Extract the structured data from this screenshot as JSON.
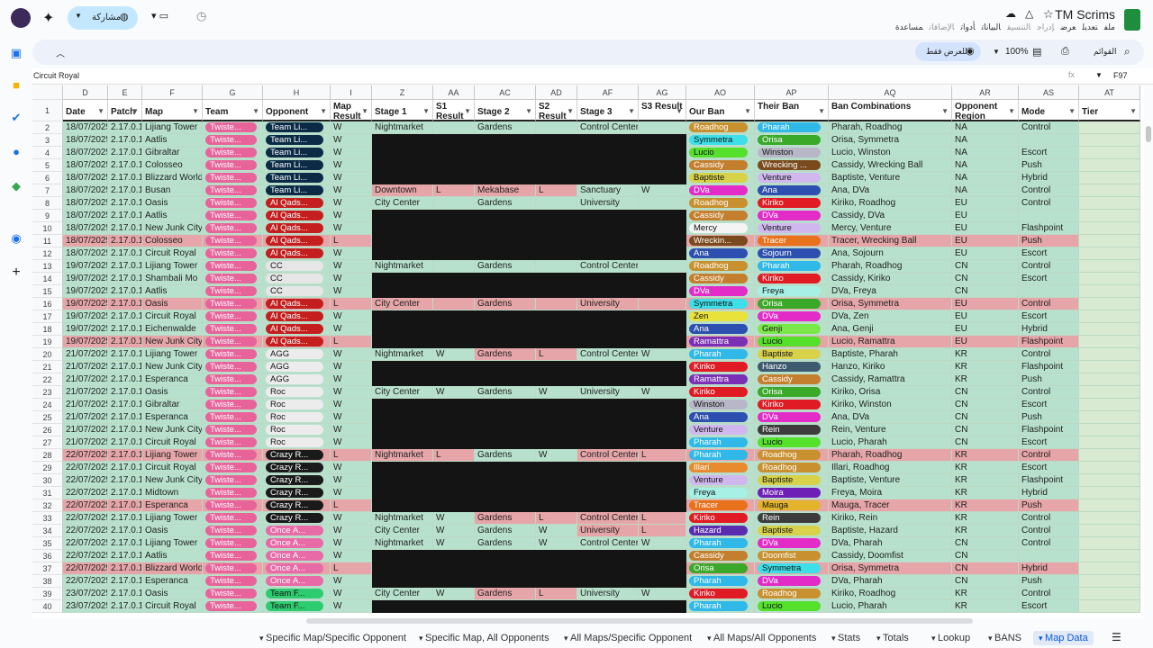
{
  "doc": {
    "title": "TM Scrims",
    "share_label": "مشاركة",
    "menus": [
      "ملف",
      "تعديل",
      "عرض",
      "إدراج",
      "التنسيق",
      "البيانات",
      "أدوات",
      "الإضافات",
      "مساعدة"
    ],
    "view_only": "للعرض فقط",
    "zoom": "100%",
    "menus_label": "القوائم",
    "cell_ref": "F97",
    "formula_value": "Circuit Royal"
  },
  "columns": [
    {
      "letter": "D",
      "w": 50
    },
    {
      "letter": "E",
      "w": 38
    },
    {
      "letter": "F",
      "w": 67
    },
    {
      "letter": "G",
      "w": 67
    },
    {
      "letter": "H",
      "w": 75
    },
    {
      "letter": "I",
      "w": 46
    },
    {
      "letter": "Z",
      "w": 68
    },
    {
      "letter": "AA",
      "w": 46
    },
    {
      "letter": "AC",
      "w": 68
    },
    {
      "letter": "AD",
      "w": 46
    },
    {
      "letter": "AF",
      "w": 68
    },
    {
      "letter": "AG",
      "w": 53
    },
    {
      "letter": "AO",
      "w": 76
    },
    {
      "letter": "AP",
      "w": 82
    },
    {
      "letter": "AQ",
      "w": 137
    },
    {
      "letter": "AR",
      "w": 74
    },
    {
      "letter": "AS",
      "w": 67
    },
    {
      "letter": "AT",
      "w": 68
    }
  ],
  "headers": [
    "Date",
    "Patch",
    "Map",
    "Team",
    "Opponent",
    "Map Result",
    "Stage 1",
    "S1 Result",
    "Stage 2",
    "S2 Result",
    "Stage 3",
    "S3 Result",
    "Our Ban",
    "Their Ban",
    "Ban Combinations",
    "Opponent Region",
    "Mode",
    "Tier"
  ],
  "rows": [
    [
      "18/07/2025",
      "2.17.0.1",
      "Lijiang Tower",
      "Twiste...",
      "Team Li...",
      "W",
      "Nightmarket",
      "",
      "Gardens",
      "",
      "Control Center",
      "",
      "Roadhog",
      "Pharah",
      "Pharah, Roadhog",
      "NA",
      "Control",
      ""
    ],
    [
      "18/07/2025",
      "2.17.0.1",
      "Aatlis",
      "Twiste...",
      "Team Li...",
      "W",
      "",
      "",
      "",
      "",
      "",
      "",
      "Symmetra",
      "Orisa",
      "Orisa, Symmetra",
      "NA",
      "",
      ""
    ],
    [
      "18/07/2025",
      "2.17.0.1",
      "Gibraltar",
      "Twiste...",
      "Team Li...",
      "W",
      "",
      "",
      "",
      "",
      "",
      "",
      "Lucio",
      "Winston",
      "Lucio, Winston",
      "NA",
      "Escort",
      ""
    ],
    [
      "18/07/2025",
      "2.17.0.1",
      "Colosseo",
      "Twiste...",
      "Team Li...",
      "W",
      "",
      "",
      "",
      "",
      "",
      "",
      "Cassidy",
      "Wrecking ...",
      "Cassidy, Wrecking Ball",
      "NA",
      "Push",
      ""
    ],
    [
      "18/07/2025",
      "2.17.0.1",
      "Blizzard World",
      "Twiste...",
      "Team Li...",
      "W",
      "",
      "",
      "",
      "",
      "",
      "",
      "Baptiste",
      "Venture",
      "Baptiste, Venture",
      "NA",
      "Hybrid",
      ""
    ],
    [
      "18/07/2025",
      "2.17.0.1",
      "Busan",
      "Twiste...",
      "Team Li...",
      "W",
      "Downtown",
      "L",
      "Mekabase",
      "L",
      "Sanctuary",
      "W",
      "DVa",
      "Ana",
      "Ana, DVa",
      "NA",
      "Control",
      ""
    ],
    [
      "18/07/2025",
      "2.17.0.1",
      "Oasis",
      "Twiste...",
      "Al Qads...",
      "W",
      "City Center",
      "",
      "Gardens",
      "",
      "University",
      "",
      "Roadhog",
      "Kiriko",
      "Kiriko, Roadhog",
      "EU",
      "Control",
      ""
    ],
    [
      "18/07/2025",
      "2.17.0.1",
      "Aatlis",
      "Twiste...",
      "Al Qads...",
      "W",
      "",
      "",
      "",
      "",
      "",
      "",
      "Cassidy",
      "DVa",
      "Cassidy, DVa",
      "EU",
      "",
      ""
    ],
    [
      "18/07/2025",
      "2.17.0.1",
      "New Junk City",
      "Twiste...",
      "Al Qads...",
      "W",
      "",
      "",
      "",
      "",
      "",
      "",
      "Mercy",
      "Venture",
      "Mercy, Venture",
      "EU",
      "Flashpoint",
      ""
    ],
    [
      "18/07/2025",
      "2.17.0.1",
      "Colosseo",
      "Twiste...",
      "Al Qads...",
      "L",
      "",
      "",
      "",
      "",
      "",
      "",
      "Wreckin...",
      "Tracer",
      "Tracer, Wrecking Ball",
      "EU",
      "Push",
      ""
    ],
    [
      "18/07/2025",
      "2.17.0.1",
      "Circuit Royal",
      "Twiste...",
      "Al Qads...",
      "W",
      "",
      "",
      "",
      "",
      "",
      "",
      "Ana",
      "Sojourn",
      "Ana, Sojourn",
      "EU",
      "Escort",
      ""
    ],
    [
      "19/07/2025",
      "2.17.0.1",
      "Lijiang Tower",
      "Twiste...",
      "CC",
      "W",
      "Nightmarket",
      "",
      "Gardens",
      "",
      "Control Center",
      "",
      "Roadhog",
      "Pharah",
      "Pharah, Roadhog",
      "CN",
      "Control",
      ""
    ],
    [
      "19/07/2025",
      "2.17.0.1",
      "Shambali Mo",
      "Twiste...",
      "CC",
      "W",
      "",
      "",
      "",
      "",
      "",
      "",
      "Cassidy",
      "Kiriko",
      "Cassidy, Kiriko",
      "CN",
      "Escort",
      ""
    ],
    [
      "19/07/2025",
      "2.17.0.1",
      "Aatlis",
      "Twiste...",
      "CC",
      "W",
      "",
      "",
      "",
      "",
      "",
      "",
      "DVa",
      "Freya",
      "DVa, Freya",
      "CN",
      "",
      ""
    ],
    [
      "19/07/2025",
      "2.17.0.1",
      "Oasis",
      "Twiste...",
      "Al Qads...",
      "L",
      "City Center",
      "",
      "Gardens",
      "",
      "University",
      "",
      "Symmetra",
      "Orisa",
      "Orisa, Symmetra",
      "EU",
      "Control",
      ""
    ],
    [
      "19/07/2025",
      "2.17.0.1",
      "Circuit Royal",
      "Twiste...",
      "Al Qads...",
      "W",
      "",
      "",
      "",
      "",
      "",
      "",
      "Zen",
      "DVa",
      "DVa, Zen",
      "EU",
      "Escort",
      ""
    ],
    [
      "19/07/2025",
      "2.17.0.1",
      "Eichenwalde",
      "Twiste...",
      "Al Qads...",
      "W",
      "",
      "",
      "",
      "",
      "",
      "",
      "Ana",
      "Genji",
      "Ana, Genji",
      "EU",
      "Hybrid",
      ""
    ],
    [
      "19/07/2025",
      "2.17.0.1",
      "New Junk City",
      "Twiste...",
      "Al Qads...",
      "L",
      "",
      "",
      "",
      "",
      "",
      "",
      "Ramattra",
      "Lucio",
      "Lucio, Ramattra",
      "EU",
      "Flashpoint",
      ""
    ],
    [
      "21/07/2025",
      "2.17.0.1",
      "Lijiang Tower",
      "Twiste...",
      "AGG",
      "W",
      "Nightmarket",
      "W",
      "Gardens",
      "L",
      "Control Center",
      "W",
      "Pharah",
      "Baptiste",
      "Baptiste, Pharah",
      "KR",
      "Control",
      ""
    ],
    [
      "21/07/2025",
      "2.17.0.1",
      "New Junk City",
      "Twiste...",
      "AGG",
      "W",
      "",
      "",
      "",
      "",
      "",
      "",
      "Kiriko",
      "Hanzo",
      "Hanzo, Kiriko",
      "KR",
      "Flashpoint",
      ""
    ],
    [
      "21/07/2025",
      "2.17.0.1",
      "Esperanca",
      "Twiste...",
      "AGG",
      "W",
      "",
      "",
      "",
      "",
      "",
      "",
      "Ramattra",
      "Cassidy",
      "Cassidy, Ramattra",
      "KR",
      "Push",
      ""
    ],
    [
      "21/07/2025",
      "2.17.0.1",
      "Oasis",
      "Twiste...",
      "Roc",
      "W",
      "City Center",
      "W",
      "Gardens",
      "W",
      "University",
      "W",
      "Kiriko",
      "Orisa",
      "Kiriko, Orisa",
      "CN",
      "Control",
      ""
    ],
    [
      "21/07/2025",
      "2.17.0.1",
      "Gibraltar",
      "Twiste...",
      "Roc",
      "W",
      "",
      "",
      "",
      "",
      "",
      "",
      "Winston",
      "Kiriko",
      "Kiriko, Winston",
      "CN",
      "Escort",
      ""
    ],
    [
      "21/07/2025",
      "2.17.0.1",
      "Esperanca",
      "Twiste...",
      "Roc",
      "W",
      "",
      "",
      "",
      "",
      "",
      "",
      "Ana",
      "DVa",
      "Ana, DVa",
      "CN",
      "Push",
      ""
    ],
    [
      "21/07/2025",
      "2.17.0.1",
      "New Junk City",
      "Twiste...",
      "Roc",
      "W",
      "",
      "",
      "",
      "",
      "",
      "",
      "Venture",
      "Rein",
      "Rein, Venture",
      "CN",
      "Flashpoint",
      ""
    ],
    [
      "21/07/2025",
      "2.17.0.1",
      "Circuit Royal",
      "Twiste...",
      "Roc",
      "W",
      "",
      "",
      "",
      "",
      "",
      "",
      "Pharah",
      "Lucio",
      "Lucio, Pharah",
      "CN",
      "Escort",
      ""
    ],
    [
      "22/07/2025",
      "2.17.0.1",
      "Lijiang Tower",
      "Twiste...",
      "Crazy R...",
      "L",
      "Nightmarket",
      "L",
      "Gardens",
      "W",
      "Control Center",
      "L",
      "Pharah",
      "Roadhog",
      "Pharah, Roadhog",
      "KR",
      "Control",
      ""
    ],
    [
      "22/07/2025",
      "2.17.0.1",
      "Circuit Royal",
      "Twiste...",
      "Crazy R...",
      "W",
      "",
      "",
      "",
      "",
      "",
      "",
      "Illari",
      "Roadhog",
      "Illari, Roadhog",
      "KR",
      "Escort",
      ""
    ],
    [
      "22/07/2025",
      "2.17.0.1",
      "New Junk City",
      "Twiste...",
      "Crazy R...",
      "W",
      "",
      "",
      "",
      "",
      "",
      "",
      "Venture",
      "Baptiste",
      "Baptiste, Venture",
      "KR",
      "Flashpoint",
      ""
    ],
    [
      "22/07/2025",
      "2.17.0.1",
      "Midtown",
      "Twiste...",
      "Crazy R...",
      "W",
      "",
      "",
      "",
      "",
      "",
      "",
      "Freya",
      "Moira",
      "Freya, Moira",
      "KR",
      "Hybrid",
      ""
    ],
    [
      "22/07/2025",
      "2.17.0.1",
      "Esperanca",
      "Twiste...",
      "Crazy R...",
      "L",
      "",
      "",
      "",
      "",
      "",
      "",
      "Tracer",
      "Mauga",
      "Mauga, Tracer",
      "KR",
      "Push",
      ""
    ],
    [
      "22/07/2025",
      "2.17.0.1",
      "Lijiang Tower",
      "Twiste...",
      "Crazy R...",
      "W",
      "Nightmarket",
      "W",
      "Gardens",
      "L",
      "Control Center",
      "L",
      "Kiriko",
      "Rein",
      "Kiriko, Rein",
      "KR",
      "Control",
      ""
    ],
    [
      "22/07/2025",
      "2.17.0.1",
      "Oasis",
      "Twiste...",
      "Once A...",
      "W",
      "City Center",
      "W",
      "Gardens",
      "W",
      "University",
      "L",
      "Hazard",
      "Baptiste",
      "Baptiste, Hazard",
      "KR",
      "Control",
      ""
    ],
    [
      "22/07/2025",
      "2.17.0.1",
      "Lijiang Tower",
      "Twiste...",
      "Once A...",
      "W",
      "Nightmarket",
      "W",
      "Gardens",
      "W",
      "Control Center",
      "W",
      "Pharah",
      "DVa",
      "DVa, Pharah",
      "CN",
      "Control",
      ""
    ],
    [
      "22/07/2025",
      "2.17.0.1",
      "Aatlis",
      "Twiste...",
      "Once A...",
      "W",
      "",
      "",
      "",
      "",
      "",
      "",
      "Cassidy",
      "Doomfist",
      "Cassidy, Doomfist",
      "CN",
      "",
      ""
    ],
    [
      "22/07/2025",
      "2.17.0.1",
      "Blizzard World",
      "Twiste...",
      "Once A...",
      "L",
      "",
      "",
      "",
      "",
      "",
      "",
      "Orisa",
      "Symmetra",
      "Orisa, Symmetra",
      "CN",
      "Hybrid",
      ""
    ],
    [
      "22/07/2025",
      "2.17.0.1",
      "Esperanca",
      "Twiste...",
      "Once A...",
      "W",
      "",
      "",
      "",
      "",
      "",
      "",
      "Pharah",
      "DVa",
      "DVa, Pharah",
      "CN",
      "Push",
      ""
    ],
    [
      "23/07/2025",
      "2.17.0.1",
      "Oasis",
      "Twiste...",
      "Team F...",
      "W",
      "City Center",
      "W",
      "Gardens",
      "L",
      "University",
      "W",
      "Kiriko",
      "Roadhog",
      "Kiriko, Roadhog",
      "KR",
      "Control",
      ""
    ],
    [
      "23/07/2025",
      "2.17.0.1",
      "Circuit Royal",
      "Twiste...",
      "Team F...",
      "W",
      "",
      "",
      "",
      "",
      "",
      "",
      "Pharah",
      "Lucio",
      "Lucio, Pharah",
      "KR",
      "Escort",
      ""
    ]
  ],
  "row_start": 2,
  "opponent_colors": {
    "Team Li...": "#0b2a45",
    "Al Qads...": "#c41e1e",
    "CC": "#e6e6e6",
    "AGG": "#ececec",
    "Roc": "#ececec",
    "Crazy R...": "#1a1a1a",
    "Once A...": "#e86aa6",
    "Team F...": "#2ecc71"
  },
  "hero_colors": {
    "Roadhog": "#c8902e",
    "Pharah": "#2fb8e8",
    "Symmetra": "#3de0e8",
    "Orisa": "#3aa829",
    "Lucio": "#55e02c",
    "Winston": "#b7b7c7",
    "Cassidy": "#c47f2e",
    "Wrecking ...": "#7a4a1d",
    "Wreckin...": "#7a4a1d",
    "Baptiste": "#d8d24a",
    "Venture": "#d0b8ef",
    "DVa": "#e32bc7",
    "Ana": "#2d4fb0",
    "Kiriko": "#e01b24",
    "Mercy": "#f4f4f4",
    "Tracer": "#e8721c",
    "Sojourn": "#2d4fb0",
    "Freya": "#a7f0e6",
    "Zen": "#e8e23a",
    "Genji": "#7be84a",
    "Ramattra": "#7a2fb5",
    "Hanzo": "#3d5a6e",
    "Rein": "#3c3c3c",
    "Illari": "#e88a2e",
    "Moira": "#6e1fb5",
    "Mauga": "#e3b42b",
    "Hazard": "#5a2db0",
    "Doomfist": "#c8902e"
  },
  "tabs": [
    "Specific Map/Specific Opponent",
    "Specific Map, All Opponents",
    "All Maps/Specific Opponent",
    "All Maps/All Opponents",
    "Stats",
    "Totals",
    "Lookup",
    "BANS",
    "Map Data"
  ]
}
